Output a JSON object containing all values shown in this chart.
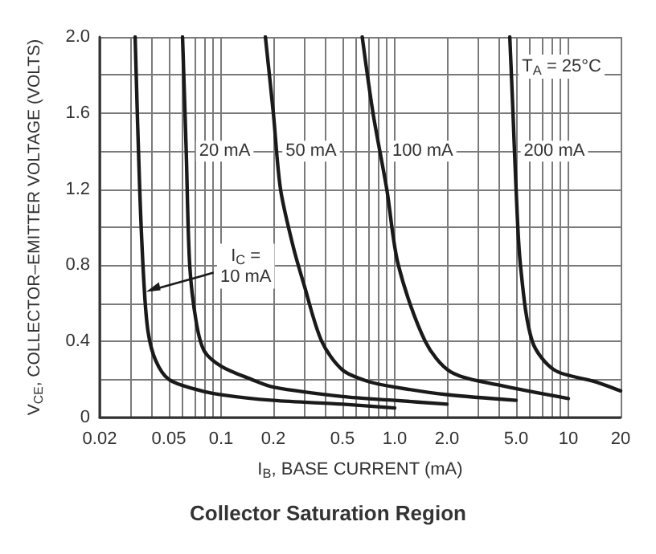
{
  "chart_data": {
    "type": "line",
    "title": "Collector Saturation Region",
    "xlabel": "I$_{B}$, BASE CURRENT (mA)",
    "ylabel": "V$_{CE}$, COLLECTOR–EMITTER VOLTAGE (VOLTS)",
    "annotations": [
      {
        "text": "I$_{C}$ =\n10 mA",
        "x": 0.037,
        "y": 0.66
      },
      {
        "text": "20 mA",
        "x": 0.105,
        "y": 1.4
      },
      {
        "text": "50 mA",
        "x": 0.33,
        "y": 1.4
      },
      {
        "text": "100 mA",
        "x": 1.45,
        "y": 1.4
      },
      {
        "text": "200 mA",
        "x": 8.3,
        "y": 1.4
      },
      "T$_{A}$ = 25°C"
    ],
    "series": [
      {
        "color": "#1a1a1a",
        "x": [
          0.032,
          0.034,
          0.036,
          0.038,
          0.042,
          0.05,
          0.07,
          0.1,
          0.2,
          0.5,
          1.0
        ],
        "values": [
          2.0,
          1.2,
          0.7,
          0.45,
          0.3,
          0.2,
          0.15,
          0.12,
          0.09,
          0.07,
          0.05
        ]
      },
      {
        "color": "#1a1a1a",
        "x": [
          0.06,
          0.063,
          0.066,
          0.072,
          0.08,
          0.1,
          0.15,
          0.2,
          0.5,
          1.0,
          2.0
        ],
        "values": [
          2.0,
          1.4,
          0.8,
          0.5,
          0.35,
          0.27,
          0.2,
          0.16,
          0.11,
          0.09,
          0.07
        ]
      },
      {
        "color": "#1a1a1a",
        "x": [
          0.18,
          0.2,
          0.22,
          0.26,
          0.3,
          0.38,
          0.5,
          0.7,
          1.0,
          2.0,
          5.0
        ],
        "values": [
          2.0,
          1.6,
          1.2,
          0.9,
          0.7,
          0.4,
          0.25,
          0.19,
          0.16,
          0.12,
          0.09
        ]
      },
      {
        "color": "#1a1a1a",
        "x": [
          0.65,
          0.75,
          0.9,
          1.05,
          1.5,
          2.1,
          4.0,
          10
        ],
        "values": [
          2.0,
          1.6,
          1.2,
          0.8,
          0.4,
          0.24,
          0.17,
          0.1
        ]
      },
      {
        "color": "#1a1a1a",
        "x": [
          4.6,
          4.8,
          5.0,
          5.3,
          6.2,
          8.3,
          14,
          20
        ],
        "values": [
          2.0,
          1.6,
          1.2,
          0.8,
          0.4,
          0.25,
          0.19,
          0.14
        ]
      }
    ],
    "xlim": [
      0.02,
      20
    ],
    "ylim": [
      0,
      2.0
    ],
    "xticks": [
      0.02,
      {
        "value": 0.03,
        "label": null
      },
      {
        "value": 0.04,
        "label": null
      },
      0.05,
      {
        "value": 0.06,
        "label": null
      },
      {
        "value": 0.07,
        "label": null
      },
      {
        "value": 0.08,
        "label": null
      },
      {
        "value": 0.09,
        "label": null
      },
      0.1,
      0.2,
      {
        "value": 0.3,
        "label": null
      },
      {
        "value": 0.4,
        "label": null
      },
      0.5,
      {
        "value": 0.6,
        "label": null
      },
      {
        "value": 0.7,
        "label": null
      },
      {
        "value": 0.8,
        "label": null
      },
      {
        "value": 0.9,
        "label": null
      },
      {
        "value": 1,
        "label": "1.0"
      },
      {
        "value": 2,
        "label": "2.0"
      },
      {
        "value": 3,
        "label": null
      },
      {
        "value": 4,
        "label": null
      },
      {
        "value": 5,
        "label": "5.0"
      },
      {
        "value": 6,
        "label": null
      },
      {
        "value": 7,
        "label": null
      },
      {
        "value": 8,
        "label": null
      },
      {
        "value": 9,
        "label": null
      },
      10,
      20
    ],
    "yticks": [
      0,
      {
        "value": 0.2,
        "label": null
      },
      0.4,
      {
        "value": 0.6,
        "label": null
      },
      0.8,
      {
        "value": 1.0,
        "label": null
      },
      1.2,
      {
        "value": 1.4,
        "label": null
      },
      1.6,
      {
        "value": 1.8,
        "label": null
      },
      {
        "value": 2.0,
        "label": "2.0"
      }
    ],
    "log": "x",
    "grid": true,
    "marker": "none",
    "line_style": "solid"
  }
}
